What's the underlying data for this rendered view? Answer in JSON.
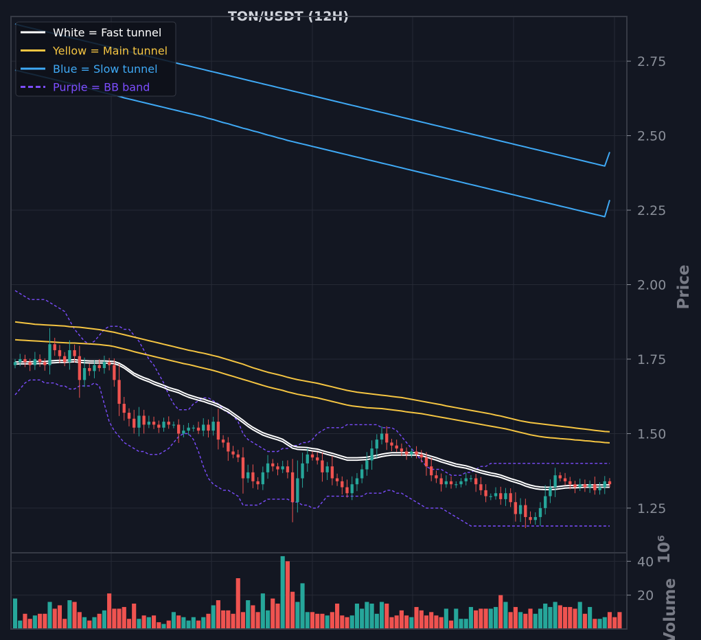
{
  "chart_data": {
    "type": "candlestick",
    "title": "TON/USDT (12H)",
    "price_label": "Price",
    "volume_label": "Volume",
    "volume_multiplier": "10⁶",
    "price_ylim": [
      1.1,
      2.9
    ],
    "price_ticks": [
      "1.25",
      "1.50",
      "1.75",
      "2.00",
      "2.25",
      "2.50",
      "2.75"
    ],
    "volume_ylim": [
      0,
      45
    ],
    "volume_ticks": [
      "20",
      "40"
    ],
    "grid": true,
    "legend_position": "top-left",
    "legend": [
      {
        "label": "White = Fast tunnel",
        "color": "#ffffff",
        "style": "solid"
      },
      {
        "label": "Yellow = Main tunnel",
        "color": "#f5c542",
        "style": "solid"
      },
      {
        "label": "Blue = Slow tunnel",
        "color": "#3fa9f5",
        "style": "solid"
      },
      {
        "label": "Purple = BB band",
        "color": "#7c4dff",
        "style": "dashed"
      }
    ],
    "colors": {
      "up": "#26a69a",
      "down": "#ef5350",
      "background": "#131722",
      "grid": "#262a35"
    },
    "closes": [
      1.74,
      1.75,
      1.74,
      1.73,
      1.75,
      1.74,
      1.73,
      1.8,
      1.78,
      1.76,
      1.74,
      1.78,
      1.76,
      1.68,
      1.72,
      1.71,
      1.73,
      1.72,
      1.74,
      1.73,
      1.68,
      1.6,
      1.57,
      1.55,
      1.52,
      1.56,
      1.53,
      1.54,
      1.53,
      1.52,
      1.54,
      1.53,
      1.53,
      1.5,
      1.51,
      1.52,
      1.52,
      1.51,
      1.53,
      1.51,
      1.54,
      1.48,
      1.47,
      1.44,
      1.43,
      1.42,
      1.35,
      1.37,
      1.34,
      1.33,
      1.37,
      1.4,
      1.39,
      1.38,
      1.39,
      1.37,
      1.27,
      1.35,
      1.4,
      1.43,
      1.42,
      1.41,
      1.37,
      1.39,
      1.35,
      1.34,
      1.32,
      1.3,
      1.33,
      1.35,
      1.38,
      1.41,
      1.45,
      1.48,
      1.5,
      1.47,
      1.46,
      1.45,
      1.44,
      1.43,
      1.44,
      1.43,
      1.42,
      1.39,
      1.36,
      1.35,
      1.33,
      1.34,
      1.33,
      1.33,
      1.34,
      1.35,
      1.35,
      1.33,
      1.31,
      1.29,
      1.29,
      1.3,
      1.28,
      1.3,
      1.27,
      1.23,
      1.26,
      1.22,
      1.21,
      1.22,
      1.25,
      1.29,
      1.32,
      1.36,
      1.35,
      1.34,
      1.33,
      1.32,
      1.33,
      1.32,
      1.33,
      1.31,
      1.32,
      1.34,
      1.33
    ],
    "volume": [
      18,
      5,
      9,
      6,
      8,
      9,
      9,
      16,
      12,
      14,
      6,
      17,
      16,
      10,
      7,
      5,
      7,
      9,
      11,
      21,
      12,
      12,
      13,
      6,
      15,
      6,
      8,
      7,
      8,
      4,
      3,
      5,
      10,
      8,
      7,
      5,
      7,
      5,
      7,
      9,
      14,
      17,
      11,
      11,
      9,
      30,
      10,
      17,
      14,
      10,
      21,
      11,
      18,
      15,
      43,
      40,
      22,
      16,
      27,
      10,
      10,
      9,
      9,
      8,
      10,
      15,
      8,
      7,
      8,
      15,
      12,
      16,
      15,
      9,
      16,
      15,
      7,
      8,
      11,
      8,
      7,
      13,
      11,
      8,
      10,
      8,
      7,
      12,
      5,
      12,
      6,
      6,
      13,
      11,
      12,
      12,
      12,
      13,
      20,
      16,
      10,
      13,
      10,
      9,
      12,
      9,
      12,
      15,
      13,
      16,
      14,
      13,
      13,
      12,
      16,
      9,
      13,
      6,
      6,
      7,
      10,
      7,
      10
    ],
    "ema_fast": [
      1.733,
      1.734,
      1.734,
      1.734,
      1.735,
      1.735,
      1.735,
      1.737,
      1.738,
      1.739,
      1.739,
      1.74,
      1.741,
      1.739,
      1.738,
      1.737,
      1.737,
      1.737,
      1.737,
      1.736,
      1.735,
      1.729,
      1.72,
      1.708,
      1.696,
      1.687,
      1.68,
      1.674,
      1.666,
      1.66,
      1.654,
      1.647,
      1.642,
      1.637,
      1.629,
      1.622,
      1.617,
      1.612,
      1.608,
      1.602,
      1.597,
      1.59,
      1.581,
      1.573,
      1.561,
      1.549,
      1.537,
      1.524,
      1.513,
      1.504,
      1.495,
      1.489,
      1.484,
      1.479,
      1.473,
      1.462,
      1.451,
      1.447,
      1.446,
      1.445,
      1.442,
      1.44,
      1.435,
      1.43,
      1.426,
      1.421,
      1.416,
      1.411,
      1.411,
      1.411,
      1.412,
      1.413,
      1.416,
      1.419,
      1.423,
      1.426,
      1.428,
      1.428,
      1.428,
      1.428,
      1.428,
      1.428,
      1.426,
      1.421,
      1.416,
      1.411,
      1.405,
      1.4,
      1.395,
      1.39,
      1.387,
      1.384,
      1.379,
      1.373,
      1.368,
      1.364,
      1.36,
      1.357,
      1.353,
      1.347,
      1.341,
      1.336,
      1.331,
      1.324,
      1.319,
      1.315,
      1.313,
      1.312,
      1.312,
      1.313,
      1.315,
      1.317,
      1.318,
      1.318,
      1.319,
      1.32,
      1.32,
      1.32,
      1.32,
      1.32,
      1.32
    ],
    "ema_fast_upper": [
      1.74,
      1.741,
      1.741,
      1.741,
      1.742,
      1.742,
      1.742,
      1.744,
      1.745,
      1.746,
      1.746,
      1.747,
      1.748,
      1.746,
      1.745,
      1.744,
      1.744,
      1.744,
      1.744,
      1.743,
      1.742,
      1.736,
      1.727,
      1.715,
      1.703,
      1.695,
      1.688,
      1.682,
      1.674,
      1.668,
      1.662,
      1.655,
      1.65,
      1.645,
      1.637,
      1.63,
      1.625,
      1.62,
      1.616,
      1.61,
      1.605,
      1.598,
      1.589,
      1.581,
      1.569,
      1.557,
      1.545,
      1.532,
      1.521,
      1.512,
      1.503,
      1.497,
      1.492,
      1.487,
      1.481,
      1.47,
      1.459,
      1.455,
      1.454,
      1.453,
      1.45,
      1.448,
      1.443,
      1.438,
      1.434,
      1.429,
      1.424,
      1.419,
      1.419,
      1.419,
      1.42,
      1.421,
      1.424,
      1.427,
      1.431,
      1.434,
      1.436,
      1.436,
      1.436,
      1.436,
      1.436,
      1.436,
      1.434,
      1.429,
      1.424,
      1.419,
      1.413,
      1.408,
      1.403,
      1.398,
      1.395,
      1.392,
      1.387,
      1.381,
      1.376,
      1.372,
      1.368,
      1.365,
      1.361,
      1.355,
      1.349,
      1.344,
      1.339,
      1.332,
      1.327,
      1.323,
      1.321,
      1.32,
      1.32,
      1.321,
      1.323,
      1.325,
      1.326,
      1.326,
      1.327,
      1.328,
      1.328,
      1.328,
      1.328,
      1.328,
      1.328
    ],
    "ema_main": [
      1.815,
      1.814,
      1.813,
      1.812,
      1.811,
      1.81,
      1.809,
      1.808,
      1.807,
      1.806,
      1.805,
      1.804,
      1.804,
      1.803,
      1.802,
      1.801,
      1.8,
      1.799,
      1.797,
      1.795,
      1.792,
      1.788,
      1.784,
      1.78,
      1.775,
      1.771,
      1.767,
      1.763,
      1.759,
      1.755,
      1.751,
      1.747,
      1.743,
      1.739,
      1.735,
      1.732,
      1.728,
      1.724,
      1.72,
      1.716,
      1.712,
      1.707,
      1.702,
      1.697,
      1.692,
      1.687,
      1.682,
      1.677,
      1.672,
      1.667,
      1.662,
      1.657,
      1.653,
      1.649,
      1.645,
      1.64,
      1.636,
      1.632,
      1.629,
      1.626,
      1.623,
      1.62,
      1.616,
      1.612,
      1.608,
      1.604,
      1.6,
      1.596,
      1.593,
      1.591,
      1.589,
      1.587,
      1.586,
      1.585,
      1.584,
      1.582,
      1.58,
      1.578,
      1.576,
      1.573,
      1.571,
      1.569,
      1.567,
      1.564,
      1.561,
      1.558,
      1.555,
      1.552,
      1.549,
      1.546,
      1.543,
      1.54,
      1.537,
      1.534,
      1.531,
      1.528,
      1.525,
      1.522,
      1.519,
      1.516,
      1.512,
      1.508,
      1.504,
      1.5,
      1.496,
      1.493,
      1.49,
      1.488,
      1.486,
      1.485,
      1.483,
      1.482,
      1.481,
      1.479,
      1.478,
      1.476,
      1.475,
      1.473,
      1.472,
      1.47,
      1.469
    ],
    "ema_main_upper": [
      1.875,
      1.873,
      1.871,
      1.869,
      1.867,
      1.866,
      1.865,
      1.864,
      1.863,
      1.862,
      1.861,
      1.859,
      1.858,
      1.857,
      1.855,
      1.853,
      1.851,
      1.849,
      1.846,
      1.843,
      1.84,
      1.836,
      1.832,
      1.828,
      1.824,
      1.82,
      1.816,
      1.812,
      1.808,
      1.804,
      1.8,
      1.796,
      1.792,
      1.788,
      1.784,
      1.78,
      1.777,
      1.773,
      1.77,
      1.766,
      1.762,
      1.758,
      1.753,
      1.748,
      1.743,
      1.738,
      1.733,
      1.727,
      1.721,
      1.716,
      1.711,
      1.706,
      1.702,
      1.698,
      1.694,
      1.689,
      1.685,
      1.681,
      1.678,
      1.675,
      1.672,
      1.669,
      1.665,
      1.661,
      1.657,
      1.653,
      1.649,
      1.645,
      1.642,
      1.639,
      1.637,
      1.635,
      1.633,
      1.631,
      1.629,
      1.627,
      1.625,
      1.623,
      1.621,
      1.618,
      1.615,
      1.612,
      1.609,
      1.606,
      1.603,
      1.6,
      1.597,
      1.593,
      1.59,
      1.587,
      1.584,
      1.581,
      1.578,
      1.575,
      1.572,
      1.569,
      1.566,
      1.562,
      1.559,
      1.555,
      1.551,
      1.547,
      1.543,
      1.54,
      1.537,
      1.535,
      1.533,
      1.531,
      1.529,
      1.527,
      1.525,
      1.523,
      1.521,
      1.519,
      1.517,
      1.515,
      1.513,
      1.511,
      1.509,
      1.507,
      1.506
    ],
    "ema_slow": [
      2.72,
      2.716,
      2.712,
      2.708,
      2.704,
      2.7,
      2.696,
      2.692,
      2.688,
      2.684,
      2.68,
      2.676,
      2.672,
      2.667,
      2.662,
      2.658,
      2.653,
      2.648,
      2.644,
      2.64,
      2.636,
      2.632,
      2.627,
      2.623,
      2.619,
      2.615,
      2.611,
      2.607,
      2.603,
      2.599,
      2.595,
      2.591,
      2.587,
      2.583,
      2.579,
      2.575,
      2.571,
      2.567,
      2.563,
      2.558,
      2.554,
      2.549,
      2.544,
      2.54,
      2.535,
      2.53,
      2.525,
      2.521,
      2.516,
      2.512,
      2.507,
      2.502,
      2.498,
      2.493,
      2.489,
      2.484,
      2.48,
      2.476,
      2.472,
      2.468,
      2.464,
      2.46,
      2.456,
      2.452,
      2.448,
      2.444,
      2.44,
      2.436,
      2.432,
      2.428,
      2.424,
      2.42,
      2.416,
      2.412,
      2.408,
      2.404,
      2.4,
      2.396,
      2.392,
      2.388,
      2.384,
      2.38,
      2.376,
      2.372,
      2.368,
      2.364,
      2.36,
      2.356,
      2.352,
      2.348,
      2.344,
      2.34,
      2.336,
      2.332,
      2.328,
      2.324,
      2.32,
      2.316,
      2.312,
      2.308,
      2.304,
      2.3,
      2.296,
      2.292,
      2.288,
      2.284,
      2.28,
      2.276,
      2.272,
      2.268,
      2.264,
      2.26,
      2.256,
      2.252,
      2.248,
      2.244,
      2.24,
      2.236,
      2.232,
      2.228,
      2.284
    ],
    "ema_slow_upper": [
      2.875,
      2.87,
      2.866,
      2.862,
      2.858,
      2.854,
      2.85,
      2.846,
      2.842,
      2.838,
      2.834,
      2.83,
      2.826,
      2.822,
      2.818,
      2.814,
      2.81,
      2.806,
      2.802,
      2.798,
      2.794,
      2.79,
      2.786,
      2.782,
      2.778,
      2.774,
      2.77,
      2.766,
      2.762,
      2.758,
      2.754,
      2.75,
      2.746,
      2.742,
      2.738,
      2.734,
      2.73,
      2.726,
      2.722,
      2.718,
      2.714,
      2.71,
      2.706,
      2.702,
      2.698,
      2.694,
      2.69,
      2.686,
      2.682,
      2.678,
      2.674,
      2.67,
      2.666,
      2.662,
      2.658,
      2.654,
      2.65,
      2.646,
      2.642,
      2.638,
      2.634,
      2.63,
      2.626,
      2.622,
      2.618,
      2.614,
      2.61,
      2.606,
      2.602,
      2.598,
      2.594,
      2.59,
      2.586,
      2.582,
      2.578,
      2.574,
      2.57,
      2.566,
      2.562,
      2.558,
      2.554,
      2.55,
      2.546,
      2.542,
      2.538,
      2.534,
      2.53,
      2.526,
      2.522,
      2.518,
      2.514,
      2.51,
      2.506,
      2.502,
      2.498,
      2.494,
      2.49,
      2.486,
      2.482,
      2.478,
      2.474,
      2.47,
      2.466,
      2.462,
      2.458,
      2.454,
      2.45,
      2.446,
      2.442,
      2.438,
      2.434,
      2.43,
      2.426,
      2.422,
      2.418,
      2.414,
      2.41,
      2.406,
      2.402,
      2.398,
      2.445
    ],
    "bb_upper": [
      1.98,
      1.97,
      1.96,
      1.95,
      1.95,
      1.95,
      1.95,
      1.94,
      1.93,
      1.92,
      1.91,
      1.88,
      1.85,
      1.83,
      1.81,
      1.8,
      1.81,
      1.83,
      1.85,
      1.86,
      1.86,
      1.86,
      1.85,
      1.85,
      1.83,
      1.81,
      1.78,
      1.75,
      1.73,
      1.7,
      1.67,
      1.63,
      1.6,
      1.58,
      1.58,
      1.58,
      1.6,
      1.61,
      1.62,
      1.62,
      1.61,
      1.6,
      1.58,
      1.57,
      1.56,
      1.54,
      1.5,
      1.48,
      1.47,
      1.46,
      1.45,
      1.44,
      1.44,
      1.44,
      1.45,
      1.45,
      1.46,
      1.46,
      1.47,
      1.47,
      1.48,
      1.5,
      1.51,
      1.52,
      1.52,
      1.52,
      1.52,
      1.53,
      1.53,
      1.53,
      1.53,
      1.53,
      1.53,
      1.53,
      1.52,
      1.52,
      1.52,
      1.51,
      1.49,
      1.47,
      1.45,
      1.43,
      1.41,
      1.39,
      1.38,
      1.38,
      1.38,
      1.37,
      1.36,
      1.36,
      1.36,
      1.37,
      1.37,
      1.38,
      1.39,
      1.39,
      1.4,
      1.4,
      1.4,
      1.4,
      1.4,
      1.4,
      1.4,
      1.4,
      1.4,
      1.4,
      1.4,
      1.4,
      1.4,
      1.4,
      1.4,
      1.4,
      1.4,
      1.4,
      1.4,
      1.4,
      1.4,
      1.4,
      1.4,
      1.4,
      1.4
    ],
    "bb_lower": [
      1.63,
      1.65,
      1.67,
      1.68,
      1.68,
      1.68,
      1.67,
      1.67,
      1.67,
      1.66,
      1.66,
      1.65,
      1.65,
      1.66,
      1.66,
      1.66,
      1.67,
      1.66,
      1.6,
      1.54,
      1.51,
      1.49,
      1.47,
      1.46,
      1.45,
      1.44,
      1.44,
      1.43,
      1.43,
      1.43,
      1.44,
      1.45,
      1.47,
      1.49,
      1.5,
      1.5,
      1.48,
      1.44,
      1.39,
      1.35,
      1.33,
      1.32,
      1.31,
      1.31,
      1.3,
      1.29,
      1.26,
      1.26,
      1.26,
      1.26,
      1.27,
      1.28,
      1.28,
      1.28,
      1.28,
      1.28,
      1.27,
      1.27,
      1.26,
      1.26,
      1.25,
      1.25,
      1.27,
      1.29,
      1.29,
      1.29,
      1.29,
      1.29,
      1.29,
      1.29,
      1.29,
      1.3,
      1.3,
      1.3,
      1.3,
      1.31,
      1.31,
      1.3,
      1.3,
      1.29,
      1.28,
      1.27,
      1.26,
      1.25,
      1.25,
      1.25,
      1.25,
      1.24,
      1.23,
      1.22,
      1.21,
      1.2,
      1.19,
      1.19,
      1.19,
      1.19,
      1.19,
      1.19,
      1.19,
      1.19,
      1.19,
      1.19,
      1.19,
      1.19,
      1.19,
      1.19,
      1.19,
      1.19,
      1.19,
      1.19,
      1.19,
      1.19,
      1.19,
      1.19,
      1.19,
      1.19,
      1.19,
      1.19,
      1.19,
      1.19,
      1.19
    ]
  }
}
